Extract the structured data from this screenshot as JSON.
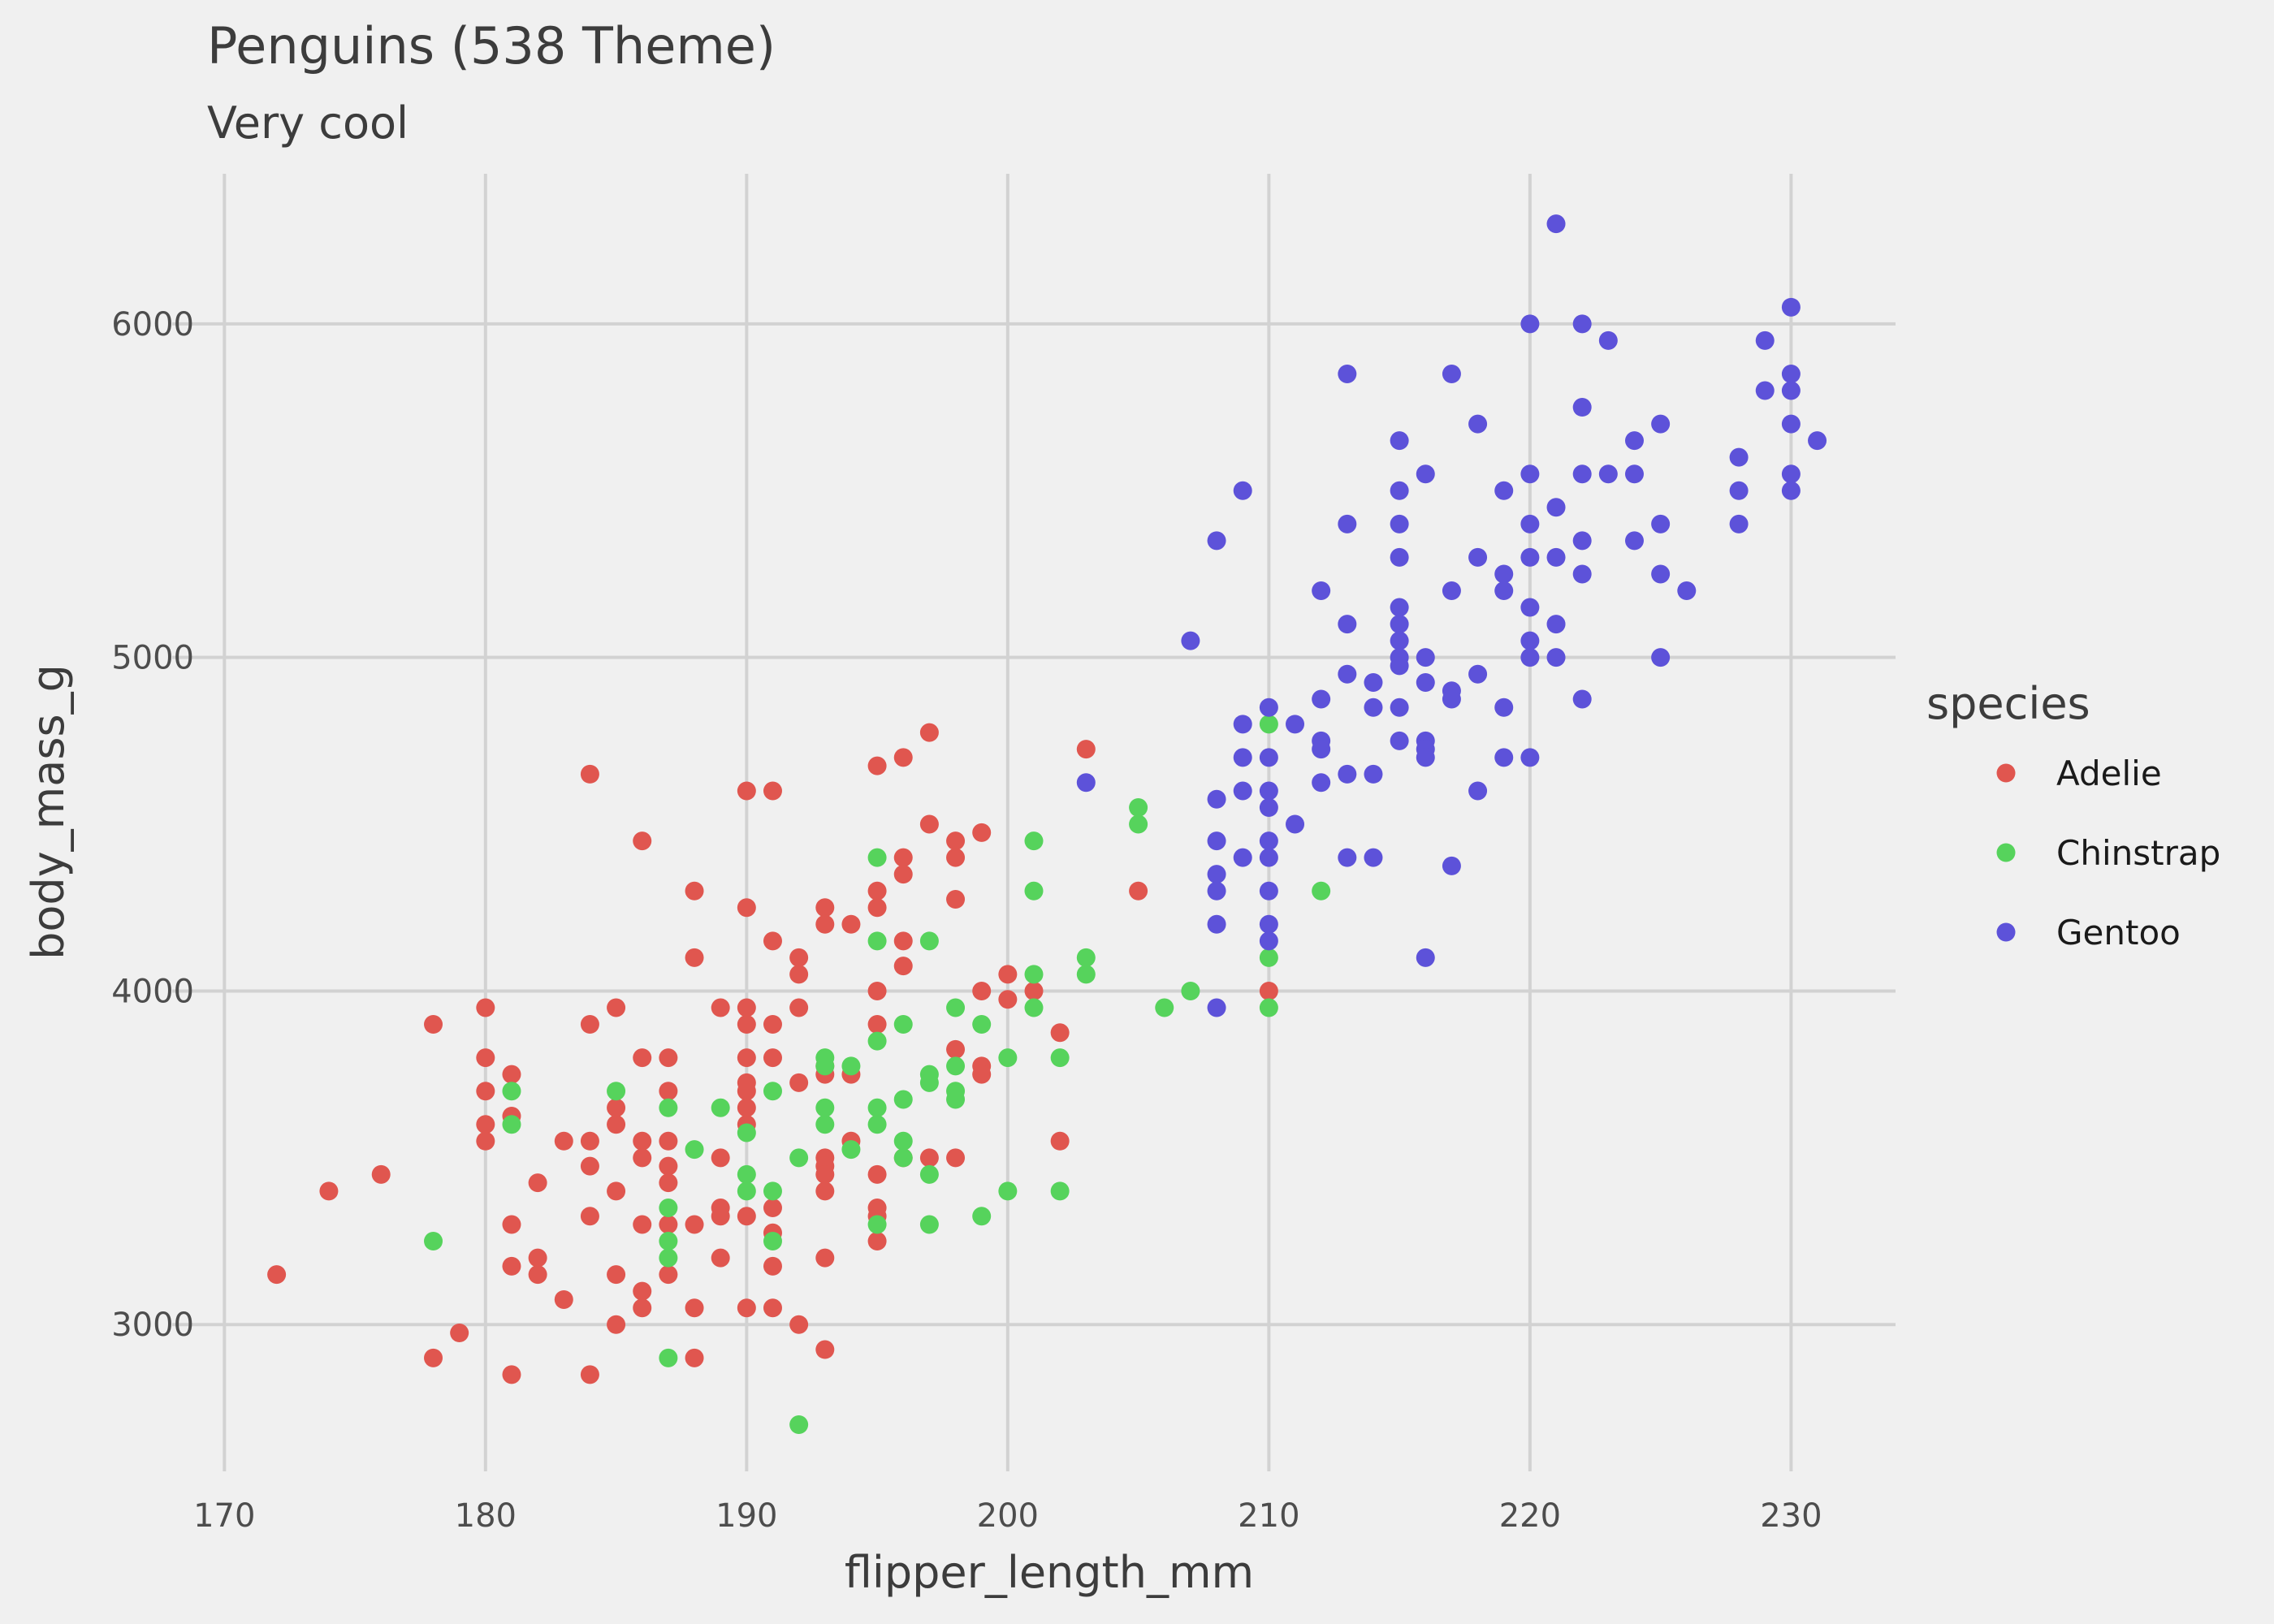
{
  "chart_data": {
    "type": "scatter",
    "title": "Penguins (538 Theme)",
    "subtitle": "Very cool",
    "xlabel": "flipper_length_mm",
    "ylabel": "body_mass_g",
    "xlim": [
      168,
      234
    ],
    "ylim": [
      2560,
      6450
    ],
    "xticks": [
      170,
      180,
      190,
      200,
      210,
      220,
      230
    ],
    "yticks": [
      3000,
      4000,
      5000,
      6000
    ],
    "grid": true,
    "legend": {
      "title": "species",
      "position": "right"
    },
    "series": [
      {
        "name": "Adelie",
        "color": "#e0564f",
        "points": [
          [
            172,
            3150
          ],
          [
            174,
            3400
          ],
          [
            176,
            3450
          ],
          [
            178,
            3900
          ],
          [
            178,
            2900
          ],
          [
            179,
            2975
          ],
          [
            180,
            3950
          ],
          [
            180,
            3800
          ],
          [
            180,
            3700
          ],
          [
            180,
            3600
          ],
          [
            180,
            3550
          ],
          [
            181,
            3750
          ],
          [
            181,
            3625
          ],
          [
            181,
            3300
          ],
          [
            181,
            3175
          ],
          [
            181,
            2850
          ],
          [
            182,
            3425
          ],
          [
            182,
            3200
          ],
          [
            182,
            3150
          ],
          [
            183,
            3550
          ],
          [
            183,
            3075
          ],
          [
            184,
            4650
          ],
          [
            184,
            3900
          ],
          [
            184,
            3550
          ],
          [
            184,
            3475
          ],
          [
            184,
            3325
          ],
          [
            184,
            2850
          ],
          [
            185,
            3950
          ],
          [
            185,
            3650
          ],
          [
            185,
            3600
          ],
          [
            185,
            3400
          ],
          [
            185,
            3150
          ],
          [
            185,
            3000
          ],
          [
            186,
            4450
          ],
          [
            186,
            3800
          ],
          [
            186,
            3550
          ],
          [
            186,
            3500
          ],
          [
            186,
            3300
          ],
          [
            186,
            3100
          ],
          [
            186,
            3050
          ],
          [
            187,
            3800
          ],
          [
            187,
            3700
          ],
          [
            187,
            3550
          ],
          [
            187,
            3475
          ],
          [
            187,
            3425
          ],
          [
            187,
            3300
          ],
          [
            187,
            3150
          ],
          [
            188,
            4300
          ],
          [
            188,
            4100
          ],
          [
            188,
            3300
          ],
          [
            188,
            3050
          ],
          [
            188,
            2900
          ],
          [
            189,
            3950
          ],
          [
            189,
            3500
          ],
          [
            189,
            3350
          ],
          [
            189,
            3325
          ],
          [
            189,
            3200
          ],
          [
            190,
            4600
          ],
          [
            190,
            4250
          ],
          [
            190,
            3950
          ],
          [
            190,
            3900
          ],
          [
            190,
            3800
          ],
          [
            190,
            3725
          ],
          [
            190,
            3700
          ],
          [
            190,
            3650
          ],
          [
            190,
            3600
          ],
          [
            190,
            3325
          ],
          [
            190,
            3050
          ],
          [
            191,
            4600
          ],
          [
            191,
            4150
          ],
          [
            191,
            3900
          ],
          [
            191,
            3800
          ],
          [
            191,
            3350
          ],
          [
            191,
            3275
          ],
          [
            191,
            3175
          ],
          [
            191,
            3050
          ],
          [
            192,
            4100
          ],
          [
            192,
            4050
          ],
          [
            192,
            3950
          ],
          [
            192,
            3725
          ],
          [
            192,
            3000
          ],
          [
            193,
            4250
          ],
          [
            193,
            4200
          ],
          [
            193,
            3775
          ],
          [
            193,
            3750
          ],
          [
            193,
            3500
          ],
          [
            193,
            3475
          ],
          [
            193,
            3450
          ],
          [
            193,
            3400
          ],
          [
            193,
            3200
          ],
          [
            193,
            2925
          ],
          [
            194,
            4200
          ],
          [
            194,
            3750
          ],
          [
            194,
            3550
          ],
          [
            195,
            4675
          ],
          [
            195,
            4300
          ],
          [
            195,
            4250
          ],
          [
            195,
            4000
          ],
          [
            195,
            3900
          ],
          [
            195,
            3450
          ],
          [
            195,
            3350
          ],
          [
            195,
            3325
          ],
          [
            195,
            3250
          ],
          [
            196,
            4700
          ],
          [
            196,
            4400
          ],
          [
            196,
            4350
          ],
          [
            196,
            4150
          ],
          [
            196,
            4075
          ],
          [
            196,
            3500
          ],
          [
            197,
            4775
          ],
          [
            197,
            4500
          ],
          [
            197,
            3500
          ],
          [
            198,
            4450
          ],
          [
            198,
            4400
          ],
          [
            198,
            4275
          ],
          [
            198,
            3825
          ],
          [
            198,
            3500
          ],
          [
            199,
            4475
          ],
          [
            199,
            4000
          ],
          [
            199,
            3775
          ],
          [
            199,
            3750
          ],
          [
            200,
            4050
          ],
          [
            200,
            3975
          ],
          [
            201,
            4000
          ],
          [
            202,
            3875
          ],
          [
            202,
            3550
          ],
          [
            203,
            4725
          ],
          [
            205,
            4300
          ],
          [
            210,
            4000
          ]
        ]
      },
      {
        "name": "Chinstrap",
        "color": "#56d35c",
        "points": [
          [
            178,
            3250
          ],
          [
            181,
            3700
          ],
          [
            181,
            3600
          ],
          [
            185,
            3700
          ],
          [
            187,
            3650
          ],
          [
            187,
            3350
          ],
          [
            187,
            3250
          ],
          [
            187,
            3200
          ],
          [
            187,
            2900
          ],
          [
            188,
            3525
          ],
          [
            189,
            3650
          ],
          [
            190,
            3575
          ],
          [
            190,
            3450
          ],
          [
            190,
            3400
          ],
          [
            191,
            3700
          ],
          [
            191,
            3400
          ],
          [
            191,
            3250
          ],
          [
            192,
            3500
          ],
          [
            192,
            2700
          ],
          [
            193,
            3800
          ],
          [
            193,
            3775
          ],
          [
            193,
            3650
          ],
          [
            193,
            3600
          ],
          [
            194,
            3775
          ],
          [
            194,
            3525
          ],
          [
            195,
            4400
          ],
          [
            195,
            4150
          ],
          [
            195,
            3850
          ],
          [
            195,
            3650
          ],
          [
            195,
            3600
          ],
          [
            195,
            3300
          ],
          [
            196,
            3900
          ],
          [
            196,
            3675
          ],
          [
            196,
            3550
          ],
          [
            196,
            3500
          ],
          [
            197,
            4150
          ],
          [
            197,
            3750
          ],
          [
            197,
            3725
          ],
          [
            197,
            3450
          ],
          [
            197,
            3300
          ],
          [
            198,
            3950
          ],
          [
            198,
            3775
          ],
          [
            198,
            3700
          ],
          [
            198,
            3675
          ],
          [
            199,
            3900
          ],
          [
            199,
            3325
          ],
          [
            200,
            3800
          ],
          [
            200,
            3400
          ],
          [
            201,
            4450
          ],
          [
            201,
            4300
          ],
          [
            201,
            4050
          ],
          [
            201,
            3950
          ],
          [
            202,
            3800
          ],
          [
            202,
            3400
          ],
          [
            203,
            4100
          ],
          [
            203,
            4050
          ],
          [
            205,
            4550
          ],
          [
            205,
            4500
          ],
          [
            206,
            3950
          ],
          [
            207,
            4000
          ],
          [
            210,
            4800
          ],
          [
            210,
            4100
          ],
          [
            210,
            3950
          ],
          [
            212,
            4300
          ]
        ]
      },
      {
        "name": "Gentoo",
        "color": "#5d52d9",
        "points": [
          [
            203,
            4625
          ],
          [
            207,
            5050
          ],
          [
            208,
            5350
          ],
          [
            208,
            4575
          ],
          [
            208,
            4450
          ],
          [
            208,
            4350
          ],
          [
            208,
            4300
          ],
          [
            208,
            4200
          ],
          [
            208,
            3950
          ],
          [
            209,
            5500
          ],
          [
            209,
            4800
          ],
          [
            209,
            4700
          ],
          [
            209,
            4600
          ],
          [
            209,
            4400
          ],
          [
            210,
            4850
          ],
          [
            210,
            4700
          ],
          [
            210,
            4600
          ],
          [
            210,
            4550
          ],
          [
            210,
            4450
          ],
          [
            210,
            4400
          ],
          [
            210,
            4300
          ],
          [
            210,
            4200
          ],
          [
            210,
            4150
          ],
          [
            211,
            4800
          ],
          [
            211,
            4500
          ],
          [
            212,
            5200
          ],
          [
            212,
            4875
          ],
          [
            212,
            4750
          ],
          [
            212,
            4725
          ],
          [
            212,
            4625
          ],
          [
            213,
            5850
          ],
          [
            213,
            5400
          ],
          [
            213,
            5100
          ],
          [
            213,
            4950
          ],
          [
            213,
            4650
          ],
          [
            213,
            4400
          ],
          [
            214,
            4925
          ],
          [
            214,
            4850
          ],
          [
            214,
            4650
          ],
          [
            214,
            4400
          ],
          [
            215,
            5650
          ],
          [
            215,
            5500
          ],
          [
            215,
            5400
          ],
          [
            215,
            5300
          ],
          [
            215,
            5150
          ],
          [
            215,
            5100
          ],
          [
            215,
            5050
          ],
          [
            215,
            5000
          ],
          [
            215,
            4975
          ],
          [
            215,
            4850
          ],
          [
            215,
            4750
          ],
          [
            216,
            5550
          ],
          [
            216,
            5000
          ],
          [
            216,
            4925
          ],
          [
            216,
            4750
          ],
          [
            216,
            4725
          ],
          [
            216,
            4700
          ],
          [
            216,
            4100
          ],
          [
            217,
            5850
          ],
          [
            217,
            5200
          ],
          [
            217,
            4900
          ],
          [
            217,
            4875
          ],
          [
            217,
            4375
          ],
          [
            218,
            5700
          ],
          [
            218,
            5300
          ],
          [
            218,
            4950
          ],
          [
            218,
            4600
          ],
          [
            219,
            5500
          ],
          [
            219,
            5250
          ],
          [
            219,
            5200
          ],
          [
            219,
            4850
          ],
          [
            219,
            4700
          ],
          [
            220,
            6000
          ],
          [
            220,
            5550
          ],
          [
            220,
            5400
          ],
          [
            220,
            5300
          ],
          [
            220,
            5150
          ],
          [
            220,
            5050
          ],
          [
            220,
            5000
          ],
          [
            220,
            4700
          ],
          [
            221,
            6300
          ],
          [
            221,
            5450
          ],
          [
            221,
            5300
          ],
          [
            221,
            5100
          ],
          [
            221,
            5000
          ],
          [
            222,
            6000
          ],
          [
            222,
            5750
          ],
          [
            222,
            5550
          ],
          [
            222,
            5350
          ],
          [
            222,
            5250
          ],
          [
            222,
            4875
          ],
          [
            223,
            5950
          ],
          [
            223,
            5550
          ],
          [
            224,
            5650
          ],
          [
            224,
            5550
          ],
          [
            224,
            5350
          ],
          [
            225,
            5700
          ],
          [
            225,
            5400
          ],
          [
            225,
            5250
          ],
          [
            225,
            5000
          ],
          [
            226,
            5200
          ],
          [
            228,
            5600
          ],
          [
            228,
            5500
          ],
          [
            228,
            5400
          ],
          [
            229,
            5950
          ],
          [
            229,
            5800
          ],
          [
            230,
            6050
          ],
          [
            230,
            5850
          ],
          [
            230,
            5800
          ],
          [
            230,
            5700
          ],
          [
            230,
            5550
          ],
          [
            230,
            5500
          ],
          [
            231,
            5650
          ]
        ]
      }
    ]
  }
}
